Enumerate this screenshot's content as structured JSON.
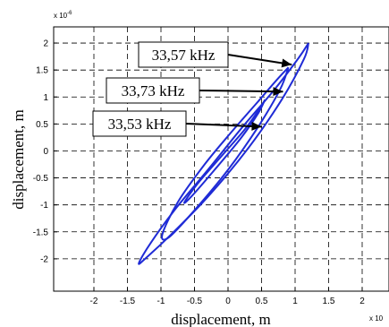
{
  "chart_data": {
    "type": "line",
    "title": "",
    "xlabel": "displacement, m",
    "ylabel": "displacement, m",
    "x_exponent_label": "x 10",
    "y_exponent_label": "x 10",
    "y_exponent_power": "-6",
    "xlim": [
      -2.6,
      2.4
    ],
    "ylim": [
      -2.6,
      2.3
    ],
    "x_ticks": [
      -2,
      -1.5,
      -1,
      -0.5,
      0,
      0.5,
      1,
      1.5,
      2
    ],
    "x_tick_labels": [
      "-2",
      "-1.5",
      "-1",
      "-0.5",
      "0",
      "0.5",
      "1",
      "1.5",
      "2"
    ],
    "y_ticks": [
      -2,
      -1.5,
      -1,
      -0.5,
      0,
      0.5,
      1,
      1.5,
      2
    ],
    "y_tick_labels": [
      "-2",
      "-1.5",
      "-1",
      "-0.5",
      "0",
      "0.5",
      "1",
      "1.5",
      "2"
    ],
    "grid": true,
    "line_color": "#1f2bd6",
    "series": [
      {
        "x": [
          1.2,
          1.05,
          0.7,
          0.2,
          -0.3,
          -0.8,
          -1.15,
          -1.33,
          -1.22,
          -0.85,
          -0.3,
          0.3,
          0.8,
          1.13,
          1.2
        ],
        "y": [
          2.0,
          1.72,
          1.15,
          0.42,
          -0.35,
          -1.1,
          -1.7,
          -2.08,
          -1.98,
          -1.55,
          -0.85,
          0.05,
          0.95,
          1.7,
          2.0
        ]
      },
      {
        "x": [
          0.9,
          0.75,
          0.45,
          0.05,
          -0.35,
          -0.75,
          -0.98,
          -0.88,
          -0.5,
          0.0,
          0.45,
          0.78,
          0.9
        ],
        "y": [
          1.55,
          1.35,
          0.92,
          0.35,
          -0.25,
          -0.95,
          -1.55,
          -1.6,
          -1.1,
          -0.35,
          0.45,
          1.15,
          1.55
        ]
      },
      {
        "x": [
          0.55,
          0.48,
          0.25,
          -0.1,
          -0.45,
          -0.65,
          -0.55,
          -0.2,
          0.2,
          0.45,
          0.55
        ],
        "y": [
          0.95,
          0.8,
          0.4,
          -0.1,
          -0.6,
          -0.95,
          -0.85,
          -0.35,
          0.25,
          0.7,
          0.95
        ]
      }
    ],
    "annotations": [
      {
        "text": "33,57 kHz",
        "target": [
          0.95,
          1.6
        ]
      },
      {
        "text": "33,73 kHz",
        "target": [
          0.82,
          1.1
        ]
      },
      {
        "text": "33,53 kHz",
        "target": [
          0.5,
          0.45
        ]
      }
    ]
  }
}
